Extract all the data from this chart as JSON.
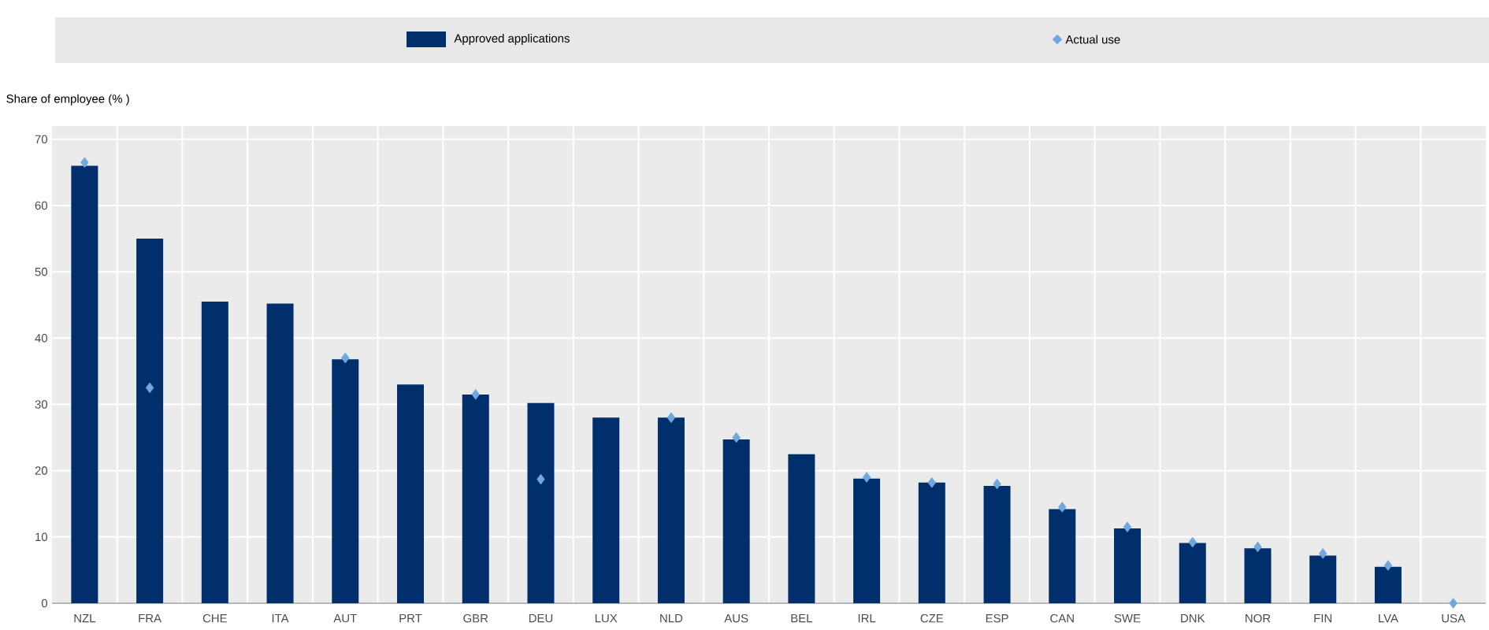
{
  "chart_data": {
    "type": "bar",
    "ylabel": "Share of employee (% )",
    "categories": [
      "NZL",
      "FRA",
      "CHE",
      "ITA",
      "AUT",
      "PRT",
      "GBR",
      "DEU",
      "LUX",
      "NLD",
      "AUS",
      "BEL",
      "IRL",
      "CZE",
      "ESP",
      "CAN",
      "SWE",
      "DNK",
      "NOR",
      "FIN",
      "LVA",
      "USA"
    ],
    "series": [
      {
        "name": "Approved applications",
        "color": "#002f6c",
        "values": [
          66,
          55,
          45.5,
          45.2,
          36.8,
          33,
          31.5,
          30.2,
          28,
          28,
          24.7,
          22.5,
          18.8,
          18.2,
          17.7,
          14.2,
          11.3,
          9.1,
          8.3,
          7.2,
          5.5,
          null
        ]
      },
      {
        "name": "Actual use",
        "type": "scatter",
        "color": "#6fa8dc",
        "values": [
          66.5,
          32.5,
          null,
          null,
          37,
          null,
          31.5,
          18.7,
          null,
          28,
          25,
          null,
          19,
          18.2,
          18,
          14.5,
          11.5,
          9.2,
          8.5,
          7.5,
          5.7,
          0
        ]
      }
    ],
    "marker": "diamond",
    "ylim": [
      0,
      72
    ],
    "yticks": [
      0,
      10,
      20,
      30,
      40,
      50,
      60,
      70
    ],
    "grid": true,
    "legend": "top"
  }
}
